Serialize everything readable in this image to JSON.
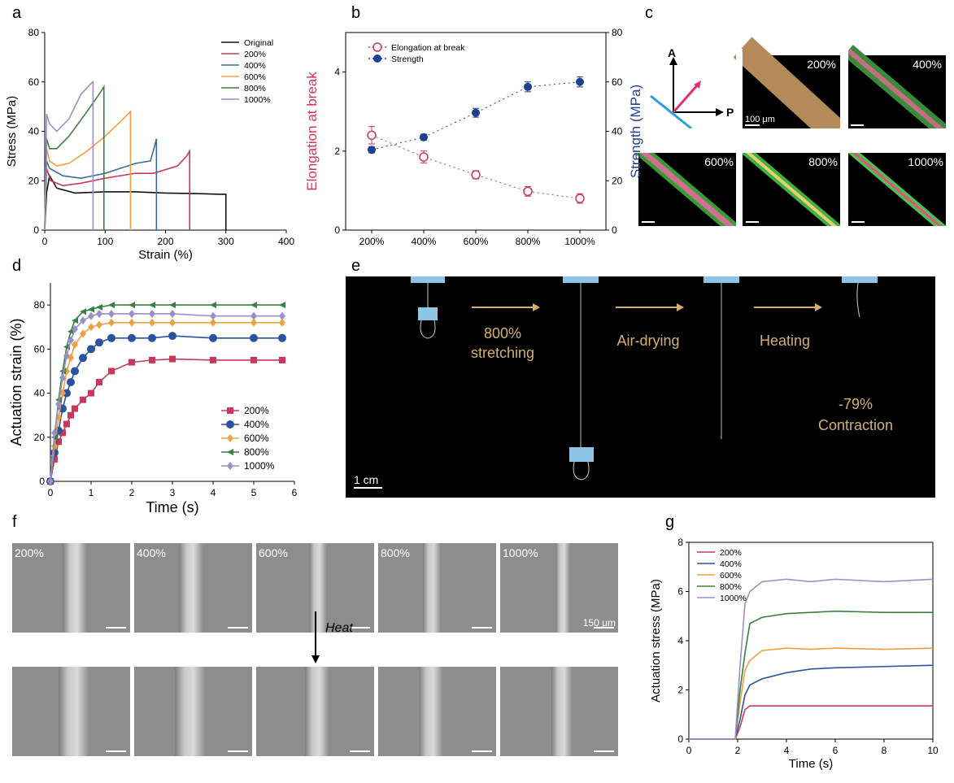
{
  "chart_data": [
    {
      "type": "line",
      "panel": "a",
      "xlabel": "Strain (%)",
      "ylabel": "Stress (MPa)",
      "xlim": [
        0,
        400
      ],
      "xticks": [
        0,
        100,
        200,
        300,
        400
      ],
      "ylim": [
        0,
        80
      ],
      "yticks": [
        0,
        20,
        40,
        60,
        80
      ],
      "legend": "upper right",
      "series": [
        {
          "name": "Original",
          "color": "#111111",
          "x": [
            0,
            3,
            8,
            20,
            50,
            100,
            150,
            200,
            250,
            290,
            300,
            300
          ],
          "values": [
            0,
            15,
            22,
            17,
            15,
            15.5,
            15.5,
            15,
            14.8,
            14.5,
            14.5,
            0
          ]
        },
        {
          "name": "200%",
          "color": "#c8385a",
          "x": [
            0,
            3,
            10,
            30,
            60,
            100,
            150,
            180,
            220,
            235,
            240,
            240
          ],
          "values": [
            0,
            25,
            20,
            18,
            19,
            21,
            23,
            23,
            26,
            30,
            32,
            0
          ]
        },
        {
          "name": "400%",
          "color": "#3a6aa0",
          "x": [
            0,
            3,
            8,
            30,
            60,
            100,
            150,
            175,
            182,
            185,
            185
          ],
          "values": [
            0,
            28,
            25,
            22,
            21,
            23,
            27,
            28,
            34,
            37,
            0
          ]
        },
        {
          "name": "600%",
          "color": "#f0a040",
          "x": [
            0,
            3,
            8,
            20,
            40,
            70,
            100,
            130,
            142,
            142
          ],
          "values": [
            0,
            33,
            28,
            26,
            27,
            32,
            38,
            45,
            48,
            0
          ]
        },
        {
          "name": "800%",
          "color": "#3a8040",
          "x": [
            0,
            3,
            8,
            20,
            40,
            70,
            90,
            98,
            98
          ],
          "values": [
            0,
            37,
            33,
            33,
            38,
            48,
            55,
            58,
            0
          ]
        },
        {
          "name": "1000%",
          "color": "#9b8fc8",
          "x": [
            0,
            3,
            8,
            20,
            40,
            60,
            75,
            80,
            80
          ],
          "values": [
            0,
            47,
            43,
            40,
            45,
            55,
            59,
            60,
            0
          ]
        }
      ]
    },
    {
      "type": "errorscatter",
      "panel": "b",
      "ylabel": "Elongation at break",
      "y2label": "Strength (MPa)",
      "categories": [
        "200%",
        "400%",
        "600%",
        "800%",
        "1000%"
      ],
      "ylim": [
        0,
        5
      ],
      "yticks": [
        0,
        2,
        4
      ],
      "y2lim": [
        0,
        80
      ],
      "y2ticks": [
        0,
        20,
        40,
        60,
        80
      ],
      "legend": "upper left",
      "series": [
        {
          "name": "Elongation at break",
          "color": "#c8385a",
          "marker": "open-circle",
          "values": [
            2.4,
            1.85,
            1.4,
            0.98,
            0.8
          ],
          "errors": [
            0.22,
            0.15,
            0.1,
            0.12,
            0.12
          ]
        },
        {
          "name": "Strength",
          "color": "#1f3f8f",
          "marker": "circle",
          "axis": "y2",
          "values": [
            32.5,
            37.6,
            47.5,
            58,
            60
          ],
          "errors": [
            1.2,
            1.2,
            1.8,
            2,
            2
          ]
        }
      ]
    },
    {
      "type": "line",
      "panel": "d",
      "xlabel": "Time (s)",
      "ylabel": "Actuation strain (%)",
      "xlim": [
        0,
        6
      ],
      "xticks": [
        0,
        1,
        2,
        3,
        4,
        5,
        6
      ],
      "ylim": [
        0,
        90
      ],
      "yticks": [
        0,
        20,
        40,
        60,
        80
      ],
      "legend": "lower right",
      "series": [
        {
          "name": "200%",
          "color": "#c8385a",
          "marker": "square",
          "x": [
            0,
            0.1,
            0.2,
            0.3,
            0.4,
            0.5,
            0.6,
            0.8,
            1.0,
            1.2,
            1.5,
            2.0,
            2.5,
            3.0,
            4.0,
            5.0,
            5.7
          ],
          "values": [
            0,
            10,
            18,
            22,
            26,
            30,
            33,
            37,
            40,
            45,
            50,
            54,
            55,
            55.5,
            55,
            55,
            55
          ]
        },
        {
          "name": "400%",
          "color": "#2a52a0",
          "marker": "circle",
          "x": [
            0,
            0.1,
            0.2,
            0.3,
            0.4,
            0.5,
            0.6,
            0.8,
            1.0,
            1.2,
            1.5,
            2.0,
            2.5,
            3.0,
            4.0,
            5.0,
            5.7
          ],
          "values": [
            0,
            13,
            23,
            33,
            40,
            45,
            50,
            56,
            60,
            63,
            65,
            65,
            65,
            66,
            65,
            65,
            65
          ]
        },
        {
          "name": "600%",
          "color": "#f0a040",
          "marker": "diamond",
          "x": [
            0,
            0.1,
            0.2,
            0.3,
            0.4,
            0.5,
            0.6,
            0.8,
            1.0,
            1.2,
            1.5,
            2.0,
            2.5,
            3.0,
            4.0,
            5.0,
            5.7
          ],
          "values": [
            0,
            16,
            29,
            40,
            50,
            56,
            62,
            67,
            70,
            71,
            72,
            72,
            72,
            72,
            72,
            72,
            72
          ]
        },
        {
          "name": "800%",
          "color": "#3a8040",
          "marker": "triangle-left",
          "x": [
            0,
            0.1,
            0.2,
            0.3,
            0.4,
            0.5,
            0.6,
            0.8,
            1.0,
            1.2,
            1.5,
            2.0,
            2.5,
            3.0,
            4.0,
            5.0,
            5.7
          ],
          "values": [
            0,
            20,
            37,
            50,
            61,
            68,
            73,
            77,
            78,
            79,
            80,
            80,
            80,
            80,
            80,
            80,
            80
          ]
        },
        {
          "name": "1000%",
          "color": "#9b8fc8",
          "marker": "diamond",
          "x": [
            0,
            0.1,
            0.2,
            0.3,
            0.4,
            0.5,
            0.6,
            0.8,
            1.0,
            1.2,
            1.5,
            2.0,
            2.5,
            3.0,
            4.0,
            5.0,
            5.7
          ],
          "values": [
            0,
            22,
            35,
            47,
            57,
            64,
            69,
            73,
            75,
            76,
            76,
            76,
            76,
            76,
            75,
            75,
            75
          ]
        }
      ]
    },
    {
      "type": "line",
      "panel": "g",
      "xlabel": "Time (s)",
      "ylabel": "Actuation stress (MPa)",
      "xlim": [
        0,
        10
      ],
      "xticks": [
        0,
        2,
        4,
        6,
        8,
        10
      ],
      "ylim": [
        0,
        8
      ],
      "yticks": [
        0,
        2,
        4,
        6,
        8
      ],
      "legend": "upper left",
      "series": [
        {
          "name": "200%",
          "color": "#c8385a",
          "x": [
            0,
            1.9,
            2.1,
            2.3,
            2.5,
            3,
            4,
            5,
            6,
            8,
            10
          ],
          "values": [
            0,
            0,
            0.5,
            1.2,
            1.35,
            1.35,
            1.35,
            1.35,
            1.35,
            1.35,
            1.35
          ]
        },
        {
          "name": "400%",
          "color": "#2a52a0",
          "x": [
            0,
            1.9,
            2.1,
            2.3,
            2.5,
            3,
            4,
            5,
            6,
            8,
            10
          ],
          "values": [
            0,
            0,
            0.8,
            1.8,
            2.2,
            2.45,
            2.7,
            2.85,
            2.9,
            2.95,
            3.0
          ]
        },
        {
          "name": "600%",
          "color": "#f0a040",
          "x": [
            0,
            1.9,
            2.1,
            2.3,
            2.5,
            3,
            4,
            5,
            6,
            8,
            10
          ],
          "values": [
            0,
            0,
            1.5,
            2.8,
            3.2,
            3.6,
            3.7,
            3.65,
            3.7,
            3.65,
            3.7
          ]
        },
        {
          "name": "800%",
          "color": "#3a8040",
          "x": [
            0,
            1.9,
            2.1,
            2.3,
            2.5,
            3,
            4,
            5,
            6,
            8,
            10
          ],
          "values": [
            0,
            0,
            2,
            3.5,
            4.7,
            4.95,
            5.1,
            5.15,
            5.2,
            5.15,
            5.15
          ]
        },
        {
          "name": "1000%",
          "color": "#9b8fc8",
          "x": [
            0,
            1.9,
            2.1,
            2.3,
            2.5,
            3,
            4,
            5,
            6,
            8,
            10
          ],
          "values": [
            0,
            0,
            3,
            5.5,
            6.0,
            6.4,
            6.5,
            6.4,
            6.5,
            6.4,
            6.5
          ]
        }
      ]
    }
  ],
  "panel_c": {
    "panel": "c",
    "axes": [
      "A",
      "P"
    ],
    "images": [
      "200%",
      "400%",
      "600%",
      "800%",
      "1000%"
    ],
    "scale_bar": "100 μm"
  },
  "panel_e": {
    "panel": "e",
    "stretching": [
      "800%",
      "stretching"
    ],
    "drying": "Air-drying",
    "heating": "Heating",
    "contraction": [
      "-79%",
      "Contraction"
    ],
    "scale_bar": "1 cm"
  },
  "panel_f": {
    "panel": "f",
    "images": [
      "200%",
      "400%",
      "600%",
      "800%",
      "1000%"
    ],
    "scale_bar": "150 μm",
    "arrow": "Heat"
  }
}
